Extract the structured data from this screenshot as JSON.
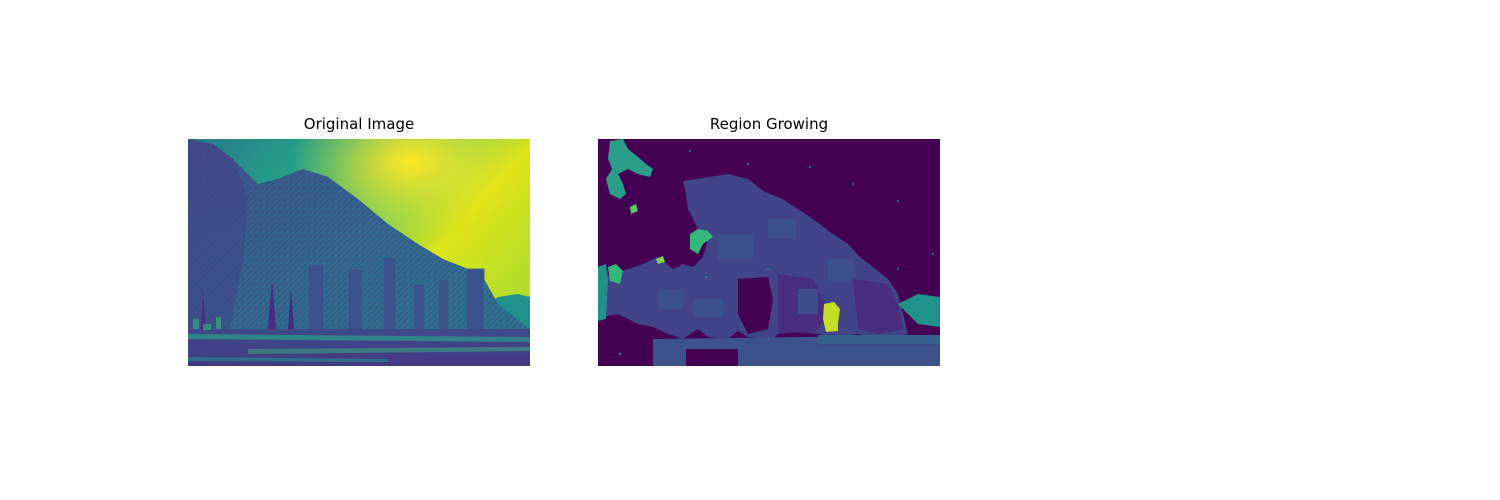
{
  "figure": {
    "panels": [
      {
        "title": "Original Image"
      },
      {
        "title": "Region Growing"
      }
    ]
  },
  "colors": {
    "viridis_dark": "#440154",
    "viridis_blue": "#3b528b",
    "viridis_indigo": "#414487",
    "viridis_teal": "#21918c",
    "viridis_green": "#35b779",
    "viridis_lime": "#90d743",
    "viridis_yellow": "#fde725"
  }
}
